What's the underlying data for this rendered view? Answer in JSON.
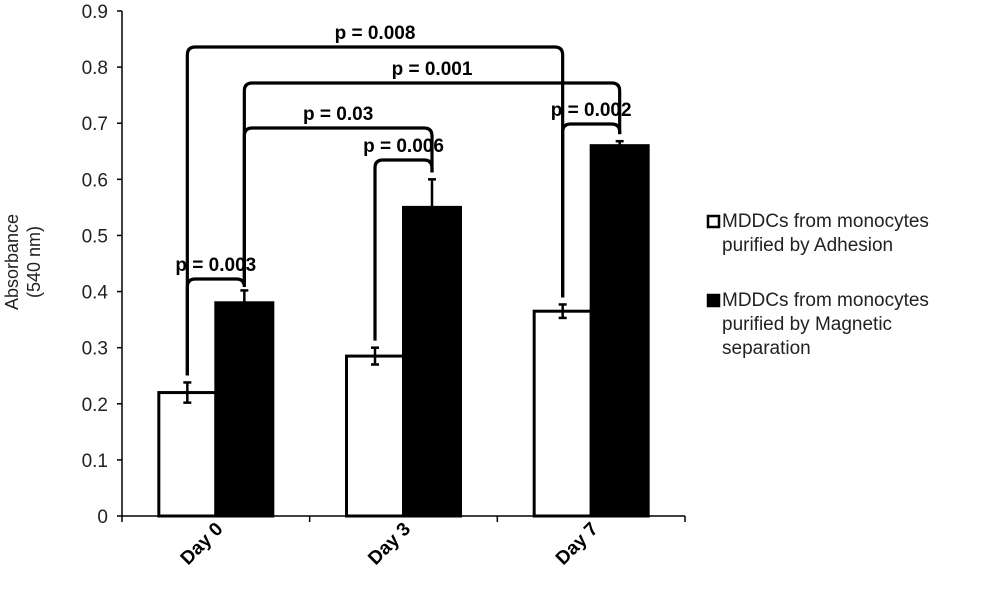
{
  "chart_data": {
    "type": "bar",
    "ylabel_line1": "Absorbance",
    "ylabel_line2": "(540 nm)",
    "ylim": [
      0,
      0.9
    ],
    "yticks": [
      "0",
      "0.1",
      "0.2",
      "0.3",
      "0.4",
      "0.5",
      "0.6",
      "0.7",
      "0.8",
      "0.9"
    ],
    "categories": [
      "Day 0",
      "Day 3",
      "Day 7"
    ],
    "series": [
      {
        "name_lines": [
          "MDDCs from monocytes",
          "purified by Adhesion"
        ],
        "fill": "#ffffff",
        "values": [
          0.22,
          0.285,
          0.365
        ],
        "errors": [
          0.018,
          0.015,
          0.012
        ]
      },
      {
        "name_lines": [
          "MDDCs from monocytes",
          "purified by Magnetic",
          "separation"
        ],
        "fill": "#000000",
        "values": [
          0.38,
          0.55,
          0.66
        ],
        "errors": [
          0.022,
          0.05,
          0.008
        ]
      }
    ],
    "annotations": [
      {
        "label": "p = 0.003",
        "from": [
          0,
          0
        ],
        "to": [
          0,
          1
        ]
      },
      {
        "label": "p = 0.006",
        "from": [
          1,
          0
        ],
        "to": [
          1,
          1
        ]
      },
      {
        "label": "p = 0.002",
        "from": [
          2,
          0
        ],
        "to": [
          2,
          1
        ]
      },
      {
        "label": "p = 0.03",
        "from": [
          0,
          1
        ],
        "to": [
          1,
          1
        ]
      },
      {
        "label": "p = 0.001",
        "from": [
          0,
          1
        ],
        "to": [
          2,
          1
        ]
      },
      {
        "label": "p = 0.008",
        "from": [
          0,
          0
        ],
        "to": [
          2,
          0
        ]
      }
    ],
    "grid": false,
    "legend": "right"
  }
}
